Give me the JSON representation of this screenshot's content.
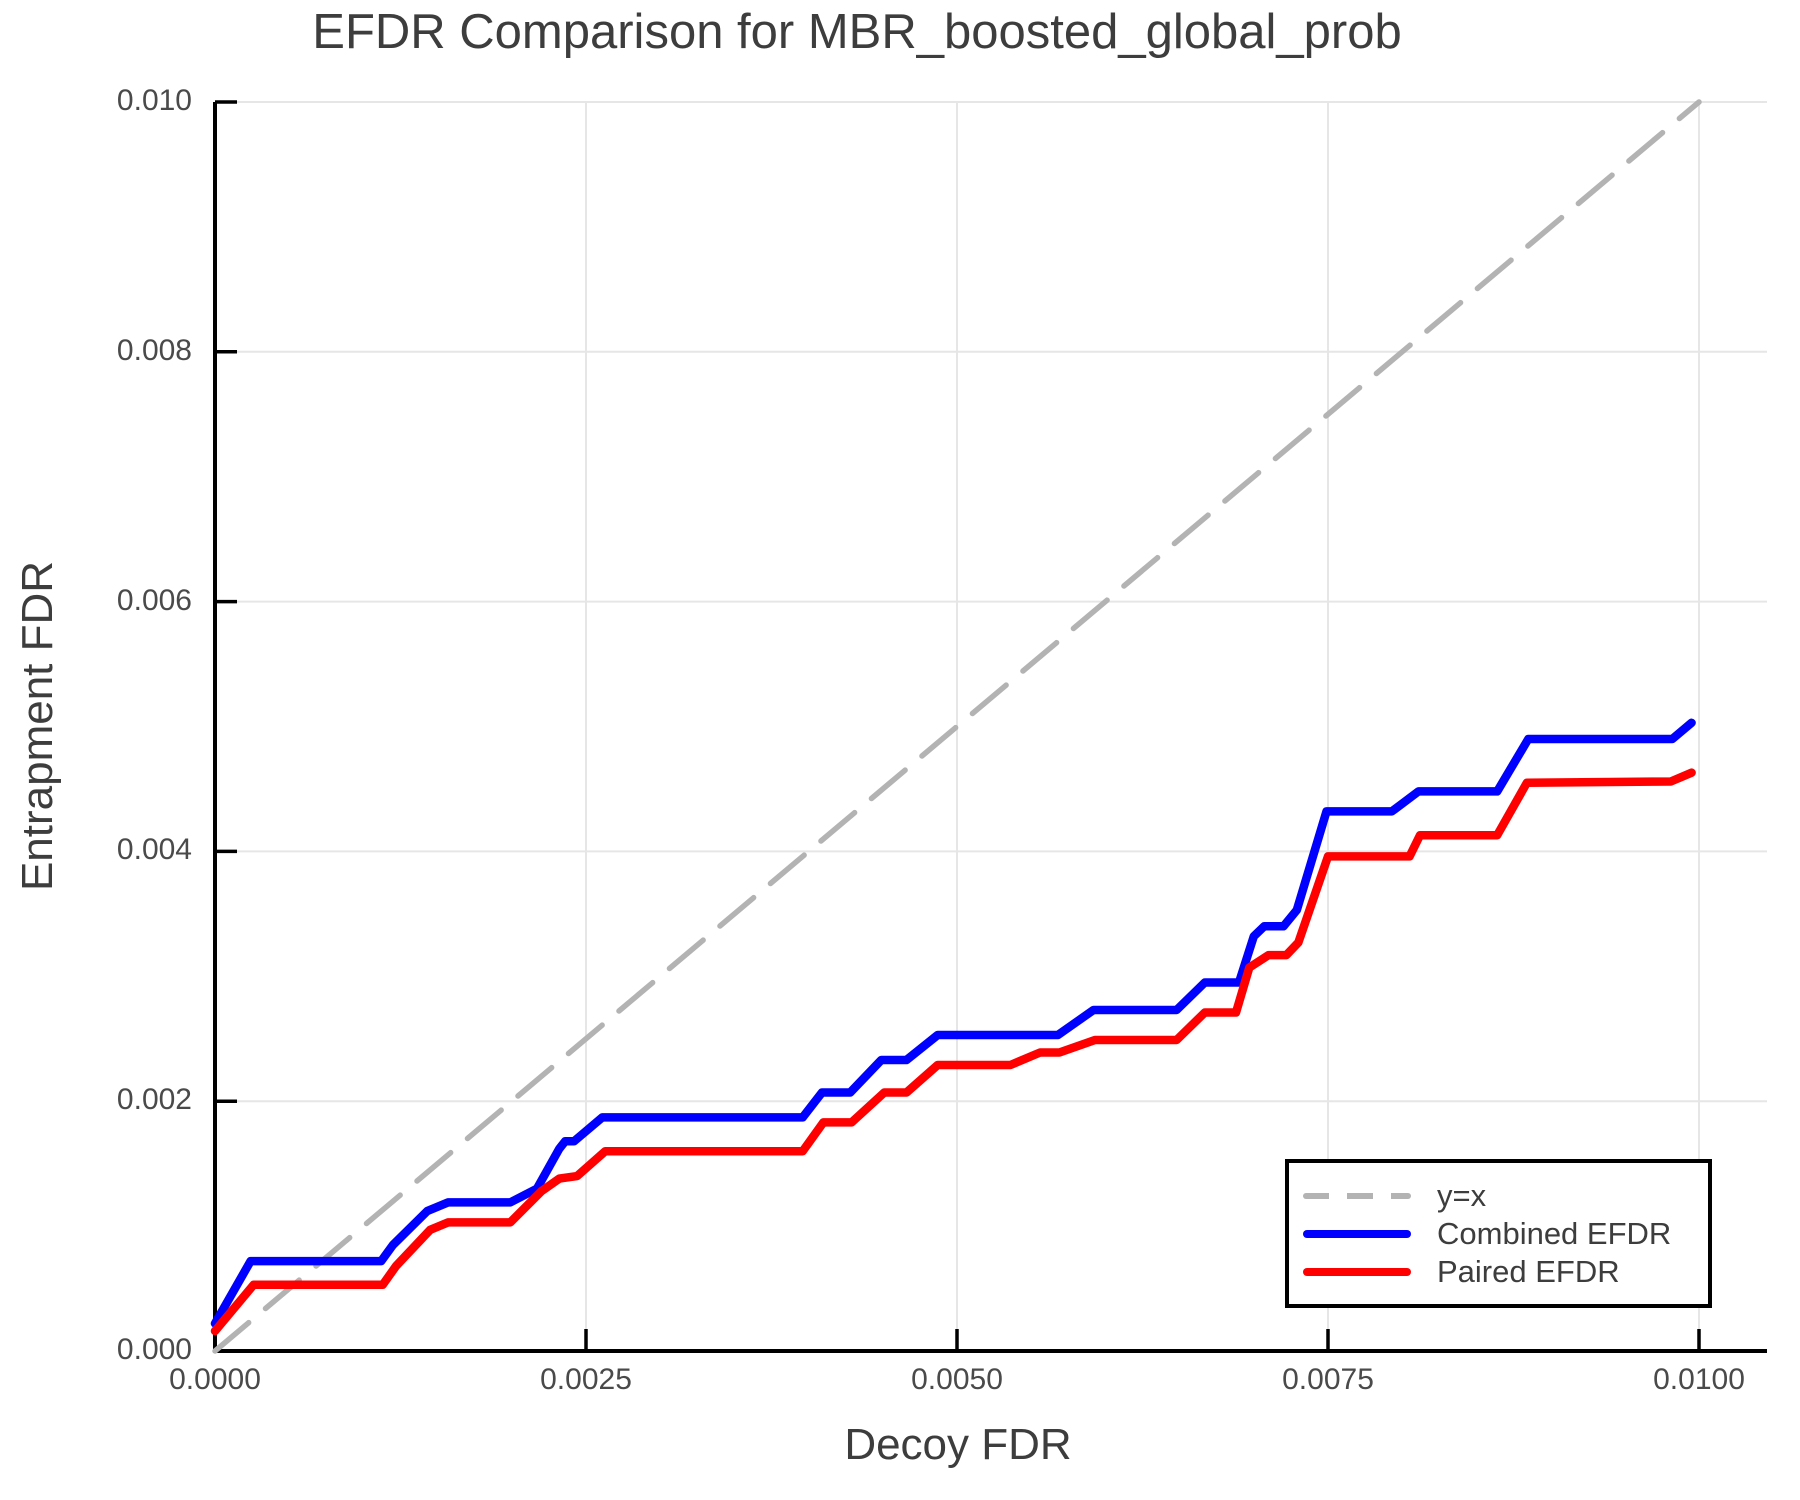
{
  "title": "EFDR Comparison for MBR_boosted_global_prob",
  "x_axis": {
    "label": "Decoy FDR",
    "tick_values": [
      0.0,
      0.0025,
      0.005,
      0.0075,
      0.01
    ],
    "tick_labels": [
      "0.0000",
      "0.0025",
      "0.0050",
      "0.0075",
      "0.0100"
    ]
  },
  "y_axis": {
    "label": "Entrapment FDR",
    "tick_values": [
      0.0,
      0.002,
      0.004,
      0.006,
      0.008,
      0.01
    ],
    "tick_labels": [
      "0.000",
      "0.002",
      "0.004",
      "0.006",
      "0.008",
      "0.010"
    ]
  },
  "colors": {
    "grid": "#e6e6e6",
    "spine": "#000000",
    "title_text": "#3d3d3d",
    "tick_text": "#4a4a4a",
    "identity_line": "#b3b3b3",
    "combined": "#0000ff",
    "paired": "#ff0000"
  },
  "legend": {
    "entries": [
      {
        "label": "y=x",
        "color": "#b3b3b3",
        "style": "dashed"
      },
      {
        "label": "Combined EFDR",
        "color": "#0000ff",
        "style": "solid"
      },
      {
        "label": "Paired EFDR",
        "color": "#ff0000",
        "style": "solid"
      }
    ]
  },
  "chart_data": {
    "type": "line",
    "title": "EFDR Comparison for MBR_boosted_global_prob",
    "xlabel": "Decoy FDR",
    "ylabel": "Entrapment FDR",
    "xlim": [
      0.0,
      0.01
    ],
    "ylim": [
      0.0,
      0.01
    ],
    "grid": true,
    "legend_position": "lower right",
    "series": [
      {
        "name": "y=x",
        "color": "#b3b3b3",
        "dash": true,
        "width": 5.5,
        "points": [
          [
            0.0,
            0.0
          ],
          [
            0.01,
            0.01
          ]
        ]
      },
      {
        "name": "Combined EFDR",
        "color": "#0000ff",
        "dash": false,
        "width": 8.5,
        "points": [
          [
            0.0,
            0.00022
          ],
          [
            0.00024,
            0.00072
          ],
          [
            0.00112,
            0.00072
          ],
          [
            0.0012,
            0.00085
          ],
          [
            0.00143,
            0.00112
          ],
          [
            0.00157,
            0.00119
          ],
          [
            0.00199,
            0.00119
          ],
          [
            0.00217,
            0.0013
          ],
          [
            0.00232,
            0.00162
          ],
          [
            0.00236,
            0.00168
          ],
          [
            0.00242,
            0.00168
          ],
          [
            0.00261,
            0.00187
          ],
          [
            0.00396,
            0.00187
          ],
          [
            0.00409,
            0.00207
          ],
          [
            0.00428,
            0.00207
          ],
          [
            0.00449,
            0.00233
          ],
          [
            0.00466,
            0.00233
          ],
          [
            0.00487,
            0.00253
          ],
          [
            0.00568,
            0.00253
          ],
          [
            0.00592,
            0.00273
          ],
          [
            0.00648,
            0.00273
          ],
          [
            0.00667,
            0.00295
          ],
          [
            0.0069,
            0.00295
          ],
          [
            0.007,
            0.00332
          ],
          [
            0.00707,
            0.0034
          ],
          [
            0.0072,
            0.0034
          ],
          [
            0.00729,
            0.00353
          ],
          [
            0.00749,
            0.00432
          ],
          [
            0.00793,
            0.00432
          ],
          [
            0.00811,
            0.00448
          ],
          [
            0.00864,
            0.00448
          ],
          [
            0.00885,
            0.0049
          ],
          [
            0.00982,
            0.0049
          ],
          [
            0.00995,
            0.00503
          ]
        ]
      },
      {
        "name": "Paired EFDR",
        "color": "#ff0000",
        "dash": false,
        "width": 8.5,
        "points": [
          [
            0.0,
            0.00016
          ],
          [
            0.00026,
            0.00053
          ],
          [
            0.00113,
            0.00053
          ],
          [
            0.00122,
            0.00068
          ],
          [
            0.00145,
            0.00097
          ],
          [
            0.00157,
            0.00103
          ],
          [
            0.00199,
            0.00103
          ],
          [
            0.0022,
            0.00128
          ],
          [
            0.00232,
            0.00138
          ],
          [
            0.00244,
            0.0014
          ],
          [
            0.00263,
            0.0016
          ],
          [
            0.00396,
            0.0016
          ],
          [
            0.0041,
            0.00183
          ],
          [
            0.00429,
            0.00183
          ],
          [
            0.00451,
            0.00207
          ],
          [
            0.00466,
            0.00207
          ],
          [
            0.00487,
            0.00229
          ],
          [
            0.00536,
            0.00229
          ],
          [
            0.00556,
            0.00239
          ],
          [
            0.00569,
            0.00239
          ],
          [
            0.00593,
            0.00249
          ],
          [
            0.00648,
            0.00249
          ],
          [
            0.00667,
            0.00271
          ],
          [
            0.00688,
            0.00271
          ],
          [
            0.00697,
            0.00307
          ],
          [
            0.0071,
            0.00317
          ],
          [
            0.00722,
            0.00317
          ],
          [
            0.0073,
            0.00327
          ],
          [
            0.0075,
            0.00396
          ],
          [
            0.00805,
            0.00396
          ],
          [
            0.00812,
            0.00413
          ],
          [
            0.00864,
            0.00413
          ],
          [
            0.00884,
            0.00455
          ],
          [
            0.00981,
            0.00456
          ],
          [
            0.00995,
            0.00463
          ]
        ]
      }
    ]
  }
}
